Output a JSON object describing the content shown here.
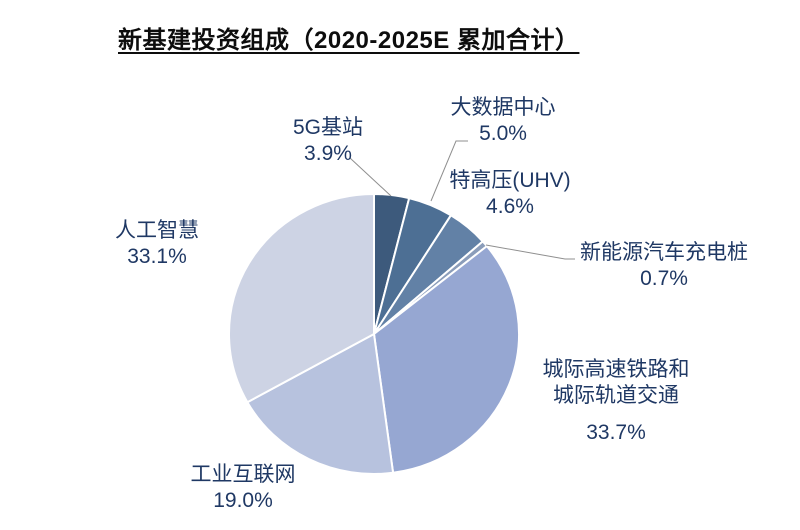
{
  "title": "新基建投资组成（2020-2025E 累加合计）",
  "chart_data": {
    "type": "pie",
    "title": "新基建投资组成（2020-2025E 累加合计）",
    "unit": "%",
    "start_angle_deg": 0,
    "direction": "clockwise",
    "legend_position": "none",
    "segments": [
      {
        "label": "5G基站",
        "value": 3.9,
        "color": "#3d5a7c"
      },
      {
        "label": "大数据中心",
        "value": 5.0,
        "color": "#4d6f94"
      },
      {
        "label": "特高压(UHV)",
        "value": 4.6,
        "color": "#6281a6"
      },
      {
        "label": "新能源汽车充电桩",
        "value": 0.7,
        "color": "#8b9dba"
      },
      {
        "label": "城际高速铁路和城际轨道交通",
        "value": 33.7,
        "color": "#96a7d2"
      },
      {
        "label": "工业互联网",
        "value": 19.0,
        "color": "#b7c2de"
      },
      {
        "label": "人工智慧",
        "value": 33.1,
        "color": "#cdd3e4"
      }
    ]
  },
  "labels": {
    "l5g": {
      "name": "5G基站",
      "pct": "3.9%"
    },
    "bigdata": {
      "name": "大数据中心",
      "pct": "5.0%"
    },
    "uhv": {
      "name": "特高压(UHV)",
      "pct": "4.6%"
    },
    "ev": {
      "name": "新能源汽车充电桩",
      "pct": "0.7%"
    },
    "rail": {
      "name_line1": "城际高速铁路和",
      "name_line2": "城际轨道交通",
      "pct": "33.7%"
    },
    "industrial": {
      "name": "工业互联网",
      "pct": "19.0%"
    },
    "ai": {
      "name": "人工智慧",
      "pct": "33.1%"
    }
  },
  "style": {
    "slice_border_color": "#ffffff",
    "leader_line_color": "#8f8f8f",
    "label_text_color": "#1f3864",
    "title_color": "#0d0d0d",
    "background": "#ffffff"
  }
}
